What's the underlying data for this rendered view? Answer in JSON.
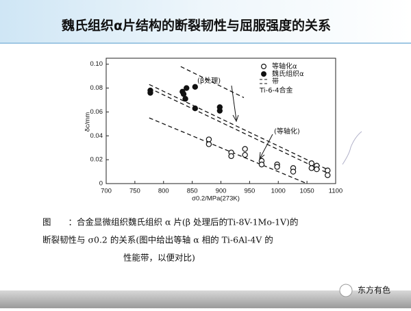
{
  "header": {
    "title": "魏氏组织α片结构的断裂韧性与屈服强度的关系"
  },
  "chart_data": {
    "type": "scatter",
    "xlabel": "σ0.2/MPa(273K)",
    "ylabel": "δc/mm",
    "xlim": [
      700,
      1100
    ],
    "ylim": [
      0,
      0.105
    ],
    "xticks": [
      700,
      750,
      800,
      850,
      900,
      950,
      1000,
      1050,
      1100
    ],
    "yticks": [
      0,
      0.02,
      0.04,
      0.06,
      0.08,
      {
        "value": 0.1,
        "label": "0.10"
      }
    ],
    "series": [
      {
        "name": "等轴化α",
        "marker": "open",
        "color": "#111111",
        "x": [
          879,
          879,
          918,
          918,
          942,
          942,
          971,
          971,
          998,
          998,
          1026,
          1026,
          1058,
          1058,
          1067,
          1067,
          1086,
          1086
        ],
        "values": [
          0.037,
          0.033,
          0.026,
          0.023,
          0.029,
          0.024,
          0.019,
          0.016,
          0.016,
          0.014,
          0.013,
          0.01,
          0.017,
          0.013,
          0.015,
          0.012,
          0.011,
          0.007
        ]
      },
      {
        "name": "魏氏组织α",
        "marker": "filled",
        "color": "#111111",
        "x": [
          777,
          777,
          833,
          835,
          840,
          838,
          855,
          855,
          898,
          898
        ],
        "values": [
          0.078,
          0.076,
          0.077,
          0.075,
          0.08,
          0.071,
          0.081,
          0.063,
          0.064,
          0.061
        ]
      }
    ],
    "bands": {
      "name": "带",
      "note": "Ti-6-4合金",
      "color": "#111111",
      "lines": [
        {
          "x": [
            830,
            940
          ],
          "values": [
            0.098,
            0.072
          ]
        },
        {
          "x": [
            775,
            1085
          ],
          "values": [
            0.083,
            0.012
          ]
        },
        {
          "x": [
            775,
            1085
          ],
          "values": [
            0.08,
            0.009
          ]
        },
        {
          "x": [
            775,
            1050
          ],
          "values": [
            0.055,
            0.0
          ]
        }
      ]
    },
    "annotations": [
      "(β处理)",
      "(等轴化)"
    ]
  },
  "caption": {
    "lines": [
      "图　　：合金显微组织魏氏组织 α 片(β 处理后的Ti-8V-1Mo-1V)的",
      "断裂韧性与 σ0.2 的关系(图中给出等轴 α 相的 Ti-6Al-4V 的",
      "性能带，以便对比)"
    ]
  },
  "footer": {
    "watermark": "东方有色"
  }
}
